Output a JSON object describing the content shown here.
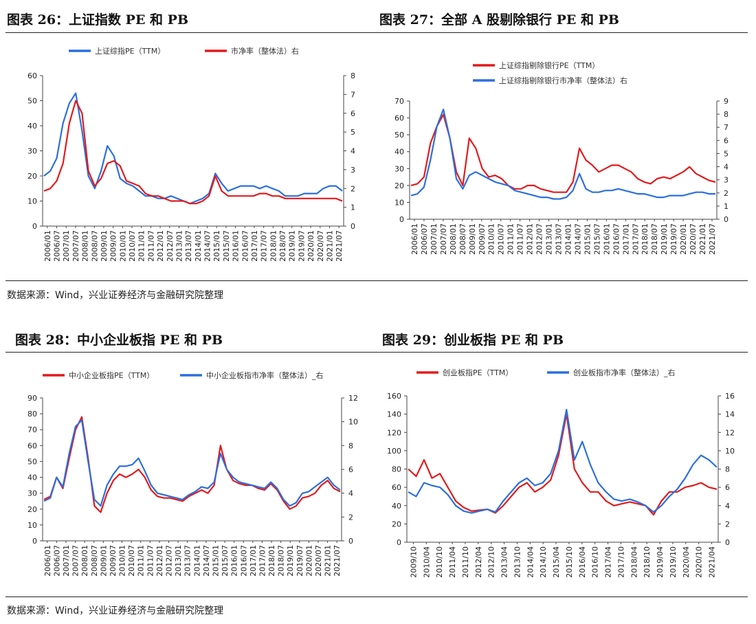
{
  "sections": {
    "top": {
      "source": "数据来源：Wind，兴业证券经济与金融研究院整理"
    },
    "bottom": {
      "source": "数据来源：Wind，兴业证券经济与金融研究院整理"
    }
  },
  "colors": {
    "red": "#e31a1c",
    "blue": "#2b6fe0"
  },
  "chart_data": [
    {
      "type": "line",
      "title": "图表 26：上证指数 PE 和 PB",
      "x_tick_labels": [
        "2006/01",
        "2006/07",
        "2007/01",
        "2007/07",
        "2008/01",
        "2008/07",
        "2009/01",
        "2009/07",
        "2010/01",
        "2010/07",
        "2011/01",
        "2011/07",
        "2012/01",
        "2012/07",
        "2013/01",
        "2013/07",
        "2014/01",
        "2014/07",
        "2015/01",
        "2015/07",
        "2016/01",
        "2016/07",
        "2017/01",
        "2017/07",
        "2018/01",
        "2018/07",
        "2019/01",
        "2019/07",
        "2020/01",
        "2020/07",
        "2021/01",
        "2021/07"
      ],
      "y_left": {
        "min": 0,
        "max": 60,
        "ticks": [
          0,
          10,
          20,
          30,
          40,
          50,
          60
        ]
      },
      "y_right": {
        "min": 0,
        "max": 8,
        "ticks": [
          0,
          1,
          2,
          3,
          4,
          5,
          6,
          7,
          8
        ]
      },
      "legend": [
        "上证综指PE（TTM）",
        "市净率（整体法）右"
      ],
      "series": [
        {
          "name": "上证综指PE（TTM）",
          "color": "blue",
          "axis": "left",
          "values": [
            20,
            22,
            27,
            41,
            49,
            53,
            38,
            20,
            15,
            22,
            32,
            28,
            19,
            17,
            16,
            14,
            12,
            12,
            11,
            11,
            12,
            11,
            10,
            9,
            10,
            11,
            13,
            21,
            17,
            14,
            15,
            16,
            16,
            16,
            15,
            16,
            15,
            14,
            12,
            12,
            12,
            13,
            13,
            13,
            15,
            16,
            16,
            14
          ]
        },
        {
          "name": "市净率（整体法）右",
          "color": "red",
          "axis": "left",
          "values": [
            14,
            15,
            18,
            25,
            41,
            50,
            45,
            22,
            16,
            19,
            25,
            26,
            24,
            18,
            17,
            16,
            13,
            12,
            12,
            11,
            10,
            10,
            10,
            9,
            9,
            10,
            12,
            20,
            14,
            12,
            12,
            12,
            12,
            12,
            13,
            13,
            12,
            12,
            11,
            11,
            11,
            11,
            11,
            11,
            11,
            11,
            11,
            10
          ]
        }
      ]
    },
    {
      "type": "line",
      "title": "图表 27：全部 A 股剔除银行 PE 和 PB",
      "x_tick_labels": [
        "2006/01",
        "2006/07",
        "2007/01",
        "2007/07",
        "2008/01",
        "2008/07",
        "2009/01",
        "2009/07",
        "2010/01",
        "2010/07",
        "2011/01",
        "2011/07",
        "2012/01",
        "2012/07",
        "2013/01",
        "2013/07",
        "2014/01",
        "2014/07",
        "2015/01",
        "2015/07",
        "2016/01",
        "2016/07",
        "2017/01",
        "2017/07",
        "2018/01",
        "2018/07",
        "2019/01",
        "2019/07",
        "2020/01",
        "2020/07",
        "2021/01",
        "2021/07"
      ],
      "y_left": {
        "min": 0,
        "max": 70,
        "ticks": [
          0,
          10,
          20,
          30,
          40,
          50,
          60,
          70
        ]
      },
      "y_right": {
        "min": 0,
        "max": 9,
        "ticks": [
          0,
          1,
          2,
          3,
          4,
          5,
          6,
          7,
          8,
          9
        ]
      },
      "legend": [
        "上证综指剔除银行PE（TTM）",
        "上证综指剔除银行市净率（整体法）右"
      ],
      "series": [
        {
          "name": "上证综指剔除银行PE（TTM）",
          "color": "red",
          "axis": "left",
          "values": [
            20,
            21,
            25,
            45,
            55,
            62,
            48,
            28,
            20,
            48,
            42,
            30,
            25,
            26,
            24,
            20,
            18,
            18,
            20,
            20,
            18,
            17,
            16,
            16,
            16,
            22,
            42,
            35,
            32,
            28,
            30,
            32,
            32,
            30,
            28,
            24,
            22,
            21,
            24,
            25,
            24,
            26,
            28,
            31,
            27,
            25,
            23,
            22
          ]
        },
        {
          "name": "上证综指剔除银行市净率（整体法）右",
          "color": "blue",
          "axis": "left",
          "values": [
            14,
            15,
            19,
            35,
            55,
            65,
            48,
            24,
            18,
            26,
            28,
            26,
            24,
            22,
            21,
            20,
            17,
            16,
            15,
            14,
            13,
            13,
            12,
            12,
            13,
            17,
            27,
            18,
            16,
            16,
            17,
            17,
            18,
            17,
            16,
            15,
            15,
            14,
            13,
            13,
            14,
            14,
            14,
            15,
            16,
            16,
            15,
            15
          ]
        }
      ]
    },
    {
      "type": "line",
      "title": "图表 28：中小企业板指 PE 和 PB",
      "x_tick_labels": [
        "2006/01",
        "2006/07",
        "2007/01",
        "2007/07",
        "2008/01",
        "2008/07",
        "2009/01",
        "2009/07",
        "2010/01",
        "2010/07",
        "2011/01",
        "2011/07",
        "2012/01",
        "2012/07",
        "2013/01",
        "2013/07",
        "2014/01",
        "2014/07",
        "2015/01",
        "2015/07",
        "2016/01",
        "2016/07",
        "2017/01",
        "2017/07",
        "2018/01",
        "2018/07",
        "2019/01",
        "2019/07",
        "2020/01",
        "2020/07",
        "2021/01",
        "2021/07"
      ],
      "y_left": {
        "min": 0,
        "max": 90,
        "ticks": [
          0,
          10,
          20,
          30,
          40,
          50,
          60,
          70,
          80,
          90
        ]
      },
      "y_right": {
        "min": 0,
        "max": 12,
        "ticks": [
          0,
          2,
          4,
          6,
          8,
          10,
          12
        ]
      },
      "legend": [
        "中小企业板指PE（TTM）",
        "中小企业板指市净率（整体法）_右"
      ],
      "series": [
        {
          "name": "中小企业板指PE（TTM）",
          "color": "red",
          "axis": "left",
          "values": [
            26,
            28,
            40,
            33,
            52,
            70,
            78,
            52,
            22,
            18,
            30,
            38,
            42,
            40,
            42,
            45,
            40,
            32,
            28,
            27,
            27,
            26,
            25,
            28,
            30,
            32,
            30,
            35,
            60,
            45,
            38,
            36,
            35,
            35,
            33,
            32,
            36,
            32,
            25,
            20,
            22,
            27,
            28,
            30,
            35,
            38,
            33,
            31
          ]
        },
        {
          "name": "中小企业板指市净率（整体法）_右",
          "color": "blue",
          "axis": "left",
          "values": [
            25,
            27,
            40,
            34,
            55,
            72,
            76,
            50,
            26,
            22,
            35,
            42,
            47,
            47,
            48,
            52,
            44,
            35,
            30,
            29,
            28,
            27,
            26,
            29,
            31,
            34,
            33,
            37,
            55,
            45,
            40,
            37,
            36,
            35,
            34,
            33,
            37,
            33,
            26,
            22,
            24,
            30,
            31,
            34,
            37,
            40,
            35,
            32
          ]
        }
      ]
    },
    {
      "type": "line",
      "title": "图表 29：创业板指 PE 和 PB",
      "x_tick_labels": [
        "2009/10",
        "2010/04",
        "2010/10",
        "2011/04",
        "2011/10",
        "2012/04",
        "2012/10",
        "2013/04",
        "2013/10",
        "2014/04",
        "2014/10",
        "2015/04",
        "2015/10",
        "2016/04",
        "2016/10",
        "2017/04",
        "2017/10",
        "2018/04",
        "2018/10",
        "2019/04",
        "2019/10",
        "2020/04",
        "2020/10",
        "2021/04"
      ],
      "y_left": {
        "min": 0,
        "max": 160,
        "ticks": [
          0,
          20,
          40,
          60,
          80,
          100,
          120,
          140,
          160
        ]
      },
      "y_right": {
        "min": 0,
        "max": 16,
        "ticks": [
          0,
          2,
          4,
          6,
          8,
          10,
          12,
          14,
          16
        ]
      },
      "legend": [
        "创业板指PE（TTM）",
        "创业板指市净率（整体法）_右"
      ],
      "series": [
        {
          "name": "创业板指PE（TTM）",
          "color": "red",
          "axis": "left",
          "values": [
            80,
            72,
            90,
            70,
            75,
            60,
            45,
            38,
            34,
            35,
            36,
            32,
            40,
            50,
            60,
            65,
            55,
            60,
            68,
            95,
            140,
            80,
            65,
            55,
            55,
            45,
            40,
            42,
            44,
            42,
            40,
            30,
            45,
            55,
            55,
            60,
            62,
            65,
            60,
            58
          ]
        },
        {
          "name": "创业板指市净率（整体法）_右",
          "color": "blue",
          "axis": "left",
          "values": [
            55,
            50,
            65,
            62,
            60,
            52,
            40,
            34,
            32,
            34,
            36,
            33,
            45,
            55,
            65,
            70,
            62,
            65,
            75,
            100,
            145,
            90,
            110,
            85,
            65,
            55,
            47,
            45,
            47,
            44,
            40,
            33,
            40,
            50,
            58,
            70,
            85,
            95,
            90,
            82
          ]
        }
      ]
    }
  ]
}
